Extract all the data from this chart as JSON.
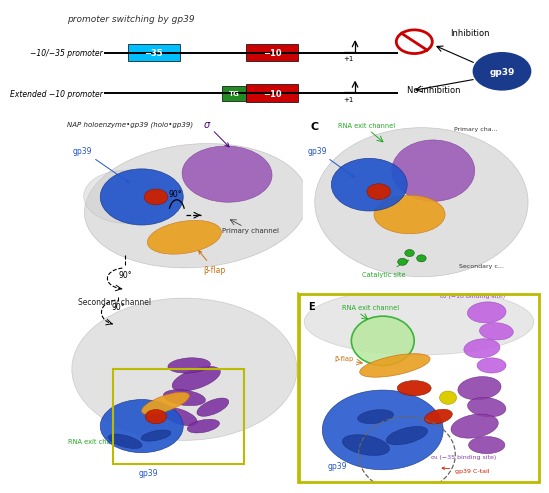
{
  "title": "promoter switching by gp39",
  "panel_b_label": "NAP holoenzyme•gp39 (holo•gp39)",
  "panel_c_label": "C",
  "panel_e_label": "E",
  "promoter1_label": "−10/−35 promoter",
  "promoter2_label": "Extended −10 promoter",
  "box1_color": "#00BFFF",
  "box1_text": "−35",
  "box2_color": "#CC0000",
  "box2_text": "−10",
  "box3_color": "#228B22",
  "box3_text": "TG",
  "inhibition_text": "Inhibition",
  "no_inhibition_text": "No inhibition",
  "gp39_circle_color": "#1a3a8c",
  "inhibit_symbol_color": "#CC0000",
  "bg_color": "#ffffff",
  "primary_channel_label": "Primary channel",
  "secondary_channel_label": "Secondary channel",
  "beta_flap_label": "β-flap",
  "rna_exit_label": "RNA exit channel",
  "gp39_label": "gp39",
  "catalytic_label": "Catalytic site",
  "sigma_label": "σ",
  "sigma2_label": "σ₂ (−10 binding site)",
  "sigma4_label": "σ₄ (−35 binding site)",
  "gp39_ctail_label": "gp39 C-tail",
  "primary_cha_label": "Primary cha...",
  "secondary_c_label": "Secondary c...",
  "grey_rnap": "#c8c8c8",
  "grey_rnap_edge": "#a0a0a0",
  "blue_gp39": "#2255cc",
  "blue_gp39_dark": "#1a3a8c",
  "purple_sigma": "#9b59b6",
  "purple_sigma_dark": "#7d3c98",
  "orange_beta": "#e8a020",
  "orange_beta_dark": "#c87010",
  "red_region": "#cc2200",
  "red_region_dark": "#881500",
  "green_cat": "#22aa22",
  "green_rna": "#b8e8a0",
  "green_rna_edge": "#22aa22",
  "yellow_zoom": "#bbbb00",
  "deep_purple": "#7b2fa0",
  "light_purple": "#c060e0",
  "sigma4_purple": "#8b3fa8"
}
